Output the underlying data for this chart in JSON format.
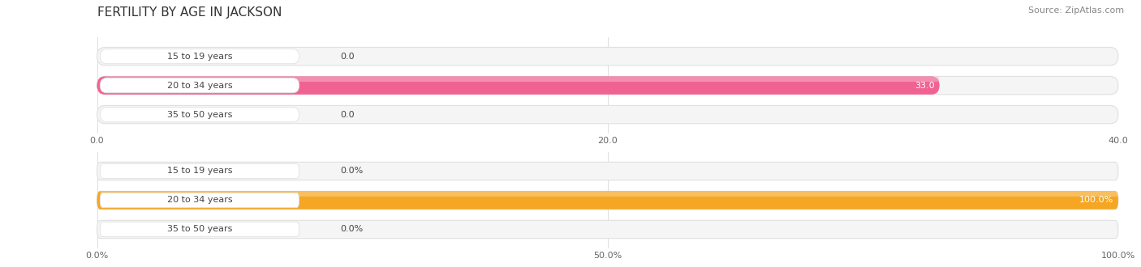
{
  "title": "FERTILITY BY AGE IN JACKSON",
  "source": "Source: ZipAtlas.com",
  "top_chart": {
    "categories": [
      "15 to 19 years",
      "20 to 34 years",
      "35 to 50 years"
    ],
    "values": [
      0.0,
      33.0,
      0.0
    ],
    "xlim": [
      0,
      40.0
    ],
    "xticks": [
      0.0,
      20.0,
      40.0
    ],
    "bar_fill_color": "#f06292",
    "bar_light_color": "#f8bbd0",
    "bar_bg_color": "#f5f5f5",
    "bar_bg_border": "#e0e0e0",
    "pill_color": "#fce4ec"
  },
  "bottom_chart": {
    "categories": [
      "15 to 19 years",
      "20 to 34 years",
      "35 to 50 years"
    ],
    "values": [
      0.0,
      100.0,
      0.0
    ],
    "xlim": [
      0,
      100.0
    ],
    "xticks": [
      0.0,
      50.0,
      100.0
    ],
    "bar_fill_color": "#f5a623",
    "bar_light_color": "#fdd89a",
    "bar_bg_color": "#f5f5f5",
    "bar_bg_border": "#e0e0e0",
    "pill_color": "#fdebd0"
  },
  "bg_color": "#ffffff",
  "title_fontsize": 11,
  "source_fontsize": 8,
  "label_fontsize": 8,
  "value_fontsize": 8,
  "tick_fontsize": 8,
  "bar_height": 0.62,
  "grid_color": "#dddddd",
  "text_color": "#444444",
  "tick_color": "#666666"
}
